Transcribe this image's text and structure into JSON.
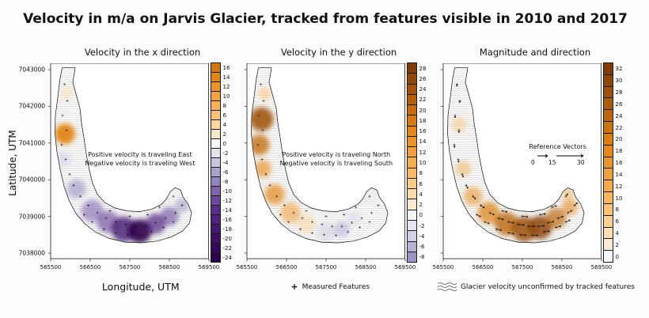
{
  "figure": {
    "title": "Velocity in m/a on Jarvis Glacier, tracked from features visible in 2010 and 2017",
    "ylabel": "Latitude, UTM",
    "xlabel": "Longitude, UTM",
    "legend": {
      "measured_symbol": "+",
      "measured": "Measured Features",
      "unconfirmed": "Glacier velocity unconfirmed by tracked features"
    }
  },
  "chart_data": {
    "type": "heatmap",
    "x_range": [
      565500,
      569500
    ],
    "y_range": [
      7038000,
      7043000
    ],
    "x_ticks": [
      565500,
      566500,
      567500,
      568500,
      569500
    ],
    "y_ticks": [
      7038000,
      7039000,
      7040000,
      7041000,
      7042000,
      7043000
    ],
    "units": "m/a",
    "colormap": {
      "stops": [
        [
          -1,
          "#2d004b"
        ],
        [
          -0.6,
          "#542788"
        ],
        [
          -0.3,
          "#998ec3"
        ],
        [
          -0.12,
          "#d8daeb"
        ],
        [
          0,
          "#f7f7f7"
        ],
        [
          0.12,
          "#fee0b6"
        ],
        [
          0.3,
          "#fdb863"
        ],
        [
          0.6,
          "#e08214"
        ],
        [
          1,
          "#7f3b08"
        ]
      ]
    },
    "glacier_outline": [
      [
        565790,
        7043050
      ],
      [
        566120,
        7043050
      ],
      [
        566060,
        7042650
      ],
      [
        566150,
        7042300
      ],
      [
        566240,
        7041950
      ],
      [
        566280,
        7041550
      ],
      [
        566340,
        7041150
      ],
      [
        566400,
        7040700
      ],
      [
        566480,
        7040250
      ],
      [
        566560,
        7039900
      ],
      [
        566680,
        7039600
      ],
      [
        566870,
        7039380
      ],
      [
        567120,
        7039230
      ],
      [
        567420,
        7039150
      ],
      [
        567750,
        7039130
      ],
      [
        568060,
        7039200
      ],
      [
        568300,
        7039330
      ],
      [
        568430,
        7039480
      ],
      [
        568530,
        7039680
      ],
      [
        568650,
        7039780
      ],
      [
        568780,
        7039720
      ],
      [
        568850,
        7039520
      ],
      [
        568970,
        7039350
      ],
      [
        569060,
        7039100
      ],
      [
        569010,
        7038820
      ],
      [
        568830,
        7038600
      ],
      [
        568550,
        7038440
      ],
      [
        568200,
        7038330
      ],
      [
        567800,
        7038280
      ],
      [
        567380,
        7038300
      ],
      [
        566980,
        7038400
      ],
      [
        566640,
        7038570
      ],
      [
        566360,
        7038800
      ],
      [
        566140,
        7039080
      ],
      [
        565970,
        7039420
      ],
      [
        565840,
        7039820
      ],
      [
        565740,
        7040280
      ],
      [
        565660,
        7040750
      ],
      [
        565610,
        7041250
      ],
      [
        565620,
        7041750
      ],
      [
        565680,
        7042250
      ],
      [
        565730,
        7042700
      ]
    ],
    "measured_features": [
      [
        565850,
        7042600,
        100,
        2.5
      ],
      [
        565920,
        7042150,
        95,
        2.5
      ],
      [
        565800,
        7041750,
        90,
        3
      ],
      [
        565900,
        7041350,
        95,
        3
      ],
      [
        565780,
        7040950,
        85,
        3.5
      ],
      [
        565880,
        7040550,
        80,
        3.5
      ],
      [
        565980,
        7040150,
        70,
        4
      ],
      [
        566080,
        7039850,
        60,
        4.5
      ],
      [
        566250,
        7039550,
        45,
        5
      ],
      [
        566450,
        7039300,
        35,
        5.5
      ],
      [
        566680,
        7039100,
        25,
        6
      ],
      [
        566900,
        7038950,
        15,
        6.5
      ],
      [
        567150,
        7038850,
        10,
        7
      ],
      [
        567400,
        7038780,
        5,
        7.5
      ],
      [
        567650,
        7038730,
        0,
        8
      ],
      [
        567900,
        7038730,
        -5,
        8
      ],
      [
        568150,
        7038830,
        -12,
        7.5
      ],
      [
        568400,
        7038950,
        -20,
        7
      ],
      [
        568650,
        7039100,
        -30,
        6
      ],
      [
        566550,
        7038850,
        20,
        6
      ],
      [
        566850,
        7038650,
        12,
        6.5
      ],
      [
        567150,
        7038550,
        8,
        7
      ],
      [
        567450,
        7038500,
        3,
        7.5
      ],
      [
        567750,
        7038480,
        -2,
        7.5
      ],
      [
        568050,
        7038580,
        -8,
        7
      ],
      [
        568350,
        7038700,
        -15,
        6.5
      ],
      [
        568600,
        7038850,
        -25,
        6
      ],
      [
        568820,
        7039300,
        -45,
        5
      ],
      [
        568600,
        7039550,
        -55,
        4
      ],
      [
        566350,
        7039050,
        30,
        5.5
      ],
      [
        567000,
        7039150,
        12,
        6
      ],
      [
        567500,
        7039000,
        4,
        7
      ],
      [
        567950,
        7039050,
        -8,
        7
      ],
      [
        568250,
        7039250,
        -18,
        6
      ]
    ],
    "panels": [
      {
        "title": "Velocity in the x direction",
        "annotation": [
          "Positive velocity is traveling East",
          "Negative velocity is traveling West"
        ],
        "colorbar_ticks": [
          16,
          14,
          12,
          10,
          8,
          6,
          4,
          2,
          0,
          -2,
          -4,
          -6,
          -8,
          -10,
          -12,
          -14,
          -16,
          -18,
          -20,
          -22,
          -24
        ],
        "show_arrows": false,
        "blobs": [
          [
            565860,
            7041250,
            13,
            14,
            0.95
          ],
          [
            565900,
            7042350,
            8,
            4,
            0.45
          ],
          [
            565830,
            7040550,
            10,
            -4,
            0.45
          ],
          [
            566150,
            7039750,
            12,
            -8,
            0.55
          ],
          [
            566550,
            7039150,
            14,
            -10,
            0.6
          ],
          [
            566950,
            7038850,
            14,
            -12,
            0.65
          ],
          [
            567350,
            7038650,
            16,
            -18,
            0.8
          ],
          [
            567750,
            7038600,
            15,
            -24,
            0.9
          ],
          [
            568150,
            7038800,
            13,
            -16,
            0.7
          ],
          [
            568500,
            7039000,
            12,
            -12,
            0.6
          ],
          [
            568820,
            7039300,
            9,
            -8,
            0.5
          ]
        ]
      },
      {
        "title": "Velocity in the y direction",
        "annotation": [
          "Positive velocity is traveling North",
          "Negative velocity is traveling South"
        ],
        "colorbar_ticks": [
          28,
          26,
          24,
          22,
          20,
          18,
          16,
          14,
          12,
          10,
          8,
          6,
          4,
          2,
          0,
          -2,
          -4,
          -6,
          -8
        ],
        "show_arrows": false,
        "blobs": [
          [
            565870,
            7041650,
            15,
            24,
            0.9
          ],
          [
            565810,
            7040950,
            13,
            20,
            0.8
          ],
          [
            565900,
            7040300,
            11,
            14,
            0.7
          ],
          [
            565950,
            7042350,
            8,
            8,
            0.5
          ],
          [
            566200,
            7039600,
            13,
            16,
            0.7
          ],
          [
            566600,
            7039100,
            13,
            12,
            0.6
          ],
          [
            567000,
            7038800,
            12,
            6,
            0.45
          ],
          [
            567500,
            7038580,
            12,
            -4,
            0.55
          ],
          [
            567900,
            7038650,
            10,
            -6,
            0.6
          ],
          [
            568200,
            7038950,
            9,
            -4,
            0.45
          ],
          [
            568600,
            7039450,
            8,
            -2,
            0.35
          ]
        ]
      },
      {
        "title": "Magnitude and direction",
        "reference_vectors": {
          "label": "Reference Vectors",
          "values": [
            "0",
            "15",
            "30"
          ]
        },
        "colorbar_ticks": [
          32,
          30,
          28,
          26,
          24,
          22,
          20,
          18,
          16,
          14,
          12,
          10,
          8,
          6,
          4,
          2,
          0
        ],
        "show_arrows": true,
        "blobs": [
          [
            565900,
            7041500,
            10,
            10,
            0.4
          ],
          [
            566000,
            7040300,
            10,
            12,
            0.5
          ],
          [
            566250,
            7039550,
            12,
            16,
            0.6
          ],
          [
            566650,
            7039100,
            14,
            20,
            0.7
          ],
          [
            567100,
            7038800,
            15,
            24,
            0.8
          ],
          [
            567550,
            7038650,
            16,
            28,
            0.85
          ],
          [
            567950,
            7038700,
            15,
            30,
            0.85
          ],
          [
            568350,
            7038950,
            13,
            24,
            0.7
          ],
          [
            568700,
            7039250,
            10,
            18,
            0.6
          ],
          [
            568650,
            7039600,
            8,
            12,
            0.5
          ]
        ]
      }
    ]
  }
}
